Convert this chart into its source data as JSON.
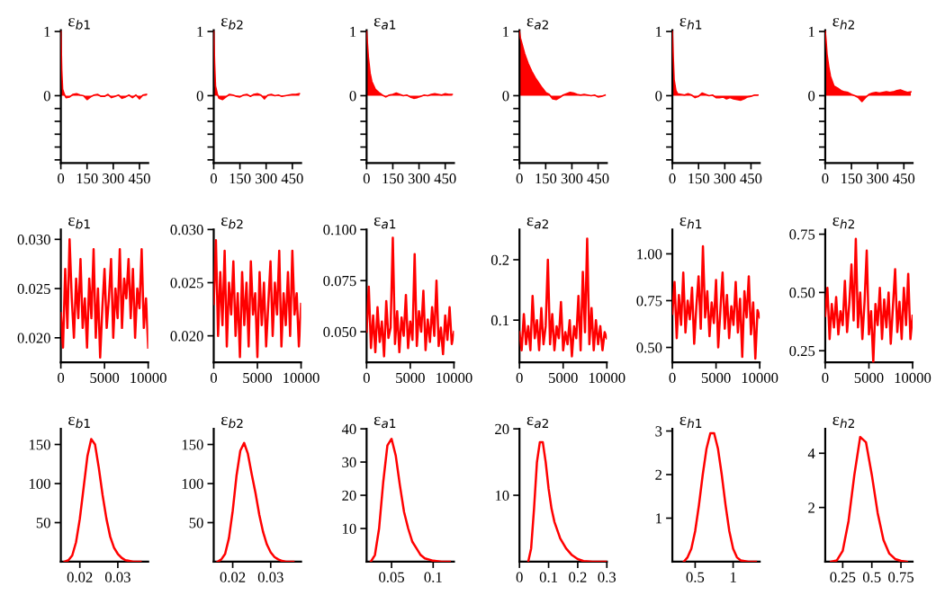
{
  "chart_data": [
    {
      "type": "area",
      "title": "ε$_{b1}$",
      "x": [
        0,
        5,
        10,
        20,
        30,
        50,
        70,
        90,
        110,
        130,
        150,
        170,
        190,
        210,
        230,
        250,
        270,
        290,
        310,
        330,
        350,
        370,
        390,
        410,
        430,
        450,
        470,
        490
      ],
      "series": [
        {
          "color": "#ff0000",
          "values": [
            1,
            0.4,
            0.1,
            0.02,
            -0.03,
            -0.02,
            0.02,
            0.03,
            0.01,
            0,
            -0.06,
            -0.02,
            0.01,
            0.02,
            -0.01,
            -0.01,
            0.02,
            -0.03,
            -0.01,
            0.01,
            -0.04,
            -0.02,
            0.01,
            -0.03,
            0.01,
            -0.05,
            0.01,
            0.02
          ]
        }
      ],
      "xlim": [
        0,
        500
      ],
      "xticks": [
        0,
        150,
        300,
        450
      ],
      "ylim": [
        -1.05,
        1.02
      ],
      "yticks": [
        {
          "value": -1,
          "label": null
        },
        {
          "value": -0.8,
          "label": null
        },
        {
          "value": -0.6,
          "label": null
        },
        {
          "value": -0.4,
          "label": null
        },
        {
          "value": -0.2,
          "label": null
        },
        0,
        1
      ],
      "grid": false,
      "legend": false
    },
    {
      "type": "area",
      "title": "ε$_{b2}$",
      "x": [
        0,
        5,
        10,
        20,
        30,
        50,
        70,
        90,
        110,
        130,
        150,
        170,
        190,
        210,
        230,
        250,
        270,
        290,
        310,
        330,
        350,
        370,
        390,
        410,
        430,
        450,
        470,
        490
      ],
      "series": [
        {
          "color": "#ff0000",
          "values": [
            1,
            0.5,
            0.15,
            0.03,
            -0.04,
            -0.06,
            -0.02,
            0.02,
            0.01,
            -0.01,
            -0.02,
            0.01,
            0.02,
            -0.01,
            0.02,
            0.03,
            0.01,
            -0.05,
            0.01,
            0.02,
            0,
            0.01,
            -0.01,
            0,
            0.01,
            0.02,
            0.02,
            0.03
          ]
        }
      ],
      "xlim": [
        0,
        500
      ],
      "xticks": [
        0,
        150,
        300,
        450
      ],
      "ylim": [
        -1.05,
        1.02
      ],
      "yticks": [
        {
          "value": -1,
          "label": null
        },
        {
          "value": -0.8,
          "label": null
        },
        {
          "value": -0.6,
          "label": null
        },
        {
          "value": -0.4,
          "label": null
        },
        {
          "value": -0.2,
          "label": null
        },
        0,
        1
      ],
      "grid": false,
      "legend": false
    },
    {
      "type": "area",
      "title": "ε$_{a1}$",
      "x": [
        0,
        5,
        10,
        20,
        30,
        50,
        70,
        90,
        110,
        130,
        150,
        170,
        190,
        210,
        230,
        250,
        270,
        290,
        310,
        330,
        350,
        370,
        390,
        410,
        430,
        450,
        470,
        490
      ],
      "series": [
        {
          "color": "#ff0000",
          "values": [
            1,
            0.8,
            0.6,
            0.35,
            0.22,
            0.1,
            0.05,
            0.01,
            -0.02,
            0.01,
            0.02,
            0.04,
            0.02,
            0,
            0.01,
            -0.02,
            -0.04,
            -0.03,
            -0.01,
            0.01,
            0,
            0.02,
            0.03,
            0.02,
            0.01,
            0.03,
            0.02,
            0.02
          ]
        }
      ],
      "xlim": [
        0,
        500
      ],
      "xticks": [
        0,
        150,
        300,
        450
      ],
      "ylim": [
        -1.05,
        1.02
      ],
      "yticks": [
        {
          "value": -1,
          "label": null
        },
        {
          "value": -0.8,
          "label": null
        },
        {
          "value": -0.6,
          "label": null
        },
        {
          "value": -0.4,
          "label": null
        },
        {
          "value": -0.2,
          "label": null
        },
        0,
        1
      ],
      "grid": false,
      "legend": false
    },
    {
      "type": "area",
      "title": "ε$_{a2}$",
      "x": [
        0,
        5,
        10,
        20,
        30,
        50,
        70,
        90,
        110,
        130,
        150,
        170,
        190,
        210,
        230,
        250,
        270,
        290,
        310,
        330,
        350,
        370,
        390,
        410,
        430,
        450,
        470,
        490
      ],
      "series": [
        {
          "color": "#ff0000",
          "values": [
            1,
            0.9,
            0.85,
            0.75,
            0.65,
            0.5,
            0.38,
            0.28,
            0.2,
            0.12,
            0.05,
            0.02,
            -0.05,
            -0.06,
            -0.03,
            0.01,
            0.03,
            0.05,
            0.04,
            0.02,
            0.01,
            0.02,
            0.01,
            0,
            0.01,
            -0.02,
            -0.01,
            0.01
          ]
        }
      ],
      "xlim": [
        0,
        500
      ],
      "xticks": [
        0,
        150,
        300,
        450
      ],
      "ylim": [
        -1.05,
        1.02
      ],
      "yticks": [
        {
          "value": -1,
          "label": null
        },
        {
          "value": -0.8,
          "label": null
        },
        {
          "value": -0.6,
          "label": null
        },
        {
          "value": -0.4,
          "label": null
        },
        {
          "value": -0.2,
          "label": null
        },
        0,
        1
      ],
      "grid": false,
      "legend": false
    },
    {
      "type": "area",
      "title": "ε$_{h1}$",
      "x": [
        0,
        5,
        10,
        20,
        30,
        50,
        70,
        90,
        110,
        130,
        150,
        170,
        190,
        210,
        230,
        250,
        270,
        290,
        310,
        330,
        350,
        370,
        390,
        410,
        430,
        450,
        470,
        490
      ],
      "series": [
        {
          "color": "#ff0000",
          "values": [
            1,
            0.6,
            0.25,
            0.08,
            0.03,
            0.02,
            0.01,
            0.03,
            0.01,
            -0.03,
            -0.01,
            0.04,
            0.02,
            0,
            0.01,
            -0.03,
            -0.03,
            -0.02,
            -0.05,
            -0.03,
            -0.05,
            -0.06,
            -0.07,
            -0.05,
            -0.02,
            -0.01,
            0.01,
            0.01
          ]
        }
      ],
      "xlim": [
        0,
        500
      ],
      "xticks": [
        0,
        150,
        300,
        450
      ],
      "ylim": [
        -1.05,
        1.02
      ],
      "yticks": [
        {
          "value": -1,
          "label": null
        },
        {
          "value": -0.8,
          "label": null
        },
        {
          "value": -0.6,
          "label": null
        },
        {
          "value": -0.4,
          "label": null
        },
        {
          "value": -0.2,
          "label": null
        },
        0,
        1
      ],
      "grid": false,
      "legend": false
    },
    {
      "type": "area",
      "title": "ε$_{h2}$",
      "x": [
        0,
        5,
        10,
        20,
        30,
        50,
        70,
        90,
        110,
        130,
        150,
        170,
        190,
        210,
        230,
        250,
        270,
        290,
        310,
        330,
        350,
        370,
        390,
        410,
        430,
        450,
        470,
        490
      ],
      "series": [
        {
          "color": "#ff0000",
          "values": [
            1,
            0.85,
            0.65,
            0.45,
            0.3,
            0.15,
            0.12,
            0.08,
            0.06,
            0.05,
            0.02,
            0,
            -0.03,
            -0.09,
            -0.03,
            0.02,
            0.04,
            0.05,
            0.04,
            0.05,
            0.06,
            0.05,
            0.06,
            0.08,
            0.09,
            0.07,
            0.05,
            0.06
          ]
        }
      ],
      "xlim": [
        0,
        500
      ],
      "xticks": [
        0,
        150,
        300,
        450
      ],
      "ylim": [
        -1.05,
        1.02
      ],
      "yticks": [
        {
          "value": -1,
          "label": null
        },
        {
          "value": -0.8,
          "label": null
        },
        {
          "value": -0.6,
          "label": null
        },
        {
          "value": -0.4,
          "label": null
        },
        {
          "value": -0.2,
          "label": null
        },
        0,
        1
      ],
      "grid": false,
      "legend": false
    },
    {
      "type": "line",
      "title": "ε$_{b1}$",
      "x": [
        0,
        250,
        500,
        750,
        1000,
        1250,
        1500,
        1750,
        2000,
        2250,
        2500,
        2750,
        3000,
        3250,
        3500,
        3750,
        4000,
        4250,
        4500,
        4750,
        5000,
        5250,
        5500,
        5750,
        6000,
        6250,
        6500,
        6750,
        7000,
        7250,
        7500,
        7750,
        8000,
        8250,
        8500,
        8750,
        9000,
        9250,
        9500,
        9750,
        10000
      ],
      "series": [
        {
          "color": "#ff0000",
          "values": [
            0.0225,
            0.019,
            0.027,
            0.021,
            0.03,
            0.024,
            0.02,
            0.026,
            0.022,
            0.028,
            0.021,
            0.024,
            0.019,
            0.026,
            0.022,
            0.029,
            0.02,
            0.025,
            0.018,
            0.023,
            0.027,
            0.021,
            0.024,
            0.028,
            0.02,
            0.025,
            0.022,
            0.029,
            0.021,
            0.026,
            0.024,
            0.028,
            0.022,
            0.027,
            0.02,
            0.025,
            0.023,
            0.029,
            0.021,
            0.024,
            0.019
          ]
        }
      ],
      "xlim": [
        0,
        10000
      ],
      "xticks": [
        0,
        5000,
        10000
      ],
      "ylim": [
        0.0175,
        0.031
      ],
      "yticks": [
        {
          "value": 0.02,
          "label": "0.020"
        },
        {
          "value": 0.025,
          "label": "0.025"
        },
        {
          "value": 0.03,
          "label": "0.030"
        }
      ],
      "grid": false,
      "legend": false
    },
    {
      "type": "line",
      "title": "ε$_{b2}$",
      "x": [
        0,
        250,
        500,
        750,
        1000,
        1250,
        1500,
        1750,
        2000,
        2250,
        2500,
        2750,
        3000,
        3250,
        3500,
        3750,
        4000,
        4250,
        4500,
        4750,
        5000,
        5250,
        5500,
        5750,
        6000,
        6250,
        6500,
        6750,
        7000,
        7250,
        7500,
        7750,
        8000,
        8250,
        8500,
        8750,
        9000,
        9250,
        9500,
        9750,
        10000
      ],
      "series": [
        {
          "color": "#ff0000",
          "values": [
            0.023,
            0.029,
            0.02,
            0.026,
            0.021,
            0.028,
            0.019,
            0.025,
            0.022,
            0.027,
            0.02,
            0.024,
            0.018,
            0.026,
            0.021,
            0.025,
            0.019,
            0.027,
            0.022,
            0.024,
            0.018,
            0.026,
            0.021,
            0.025,
            0.019,
            0.023,
            0.027,
            0.02,
            0.025,
            0.022,
            0.028,
            0.019,
            0.024,
            0.021,
            0.026,
            0.02,
            0.028,
            0.022,
            0.024,
            0.019,
            0.023
          ]
        }
      ],
      "xlim": [
        0,
        10000
      ],
      "xticks": [
        0,
        5000,
        10000
      ],
      "ylim": [
        0.0175,
        0.03
      ],
      "yticks": [
        {
          "value": 0.02,
          "label": "0.020"
        },
        {
          "value": 0.025,
          "label": "0.025"
        },
        {
          "value": 0.03,
          "label": "0.030"
        }
      ],
      "grid": false,
      "legend": false
    },
    {
      "type": "line",
      "title": "ε$_{a1}$",
      "x": [
        0,
        250,
        500,
        750,
        1000,
        1250,
        1500,
        1750,
        2000,
        2250,
        2500,
        2750,
        3000,
        3250,
        3500,
        3750,
        4000,
        4250,
        4500,
        4750,
        5000,
        5250,
        5500,
        5750,
        6000,
        6250,
        6500,
        6750,
        7000,
        7250,
        7500,
        7750,
        8000,
        8250,
        8500,
        8750,
        9000,
        9250,
        9500,
        9750,
        10000
      ],
      "series": [
        {
          "color": "#ff0000",
          "values": [
            0.05,
            0.072,
            0.042,
            0.058,
            0.04,
            0.062,
            0.045,
            0.055,
            0.038,
            0.065,
            0.047,
            0.052,
            0.096,
            0.044,
            0.06,
            0.04,
            0.057,
            0.048,
            0.068,
            0.042,
            0.055,
            0.046,
            0.088,
            0.043,
            0.06,
            0.05,
            0.07,
            0.041,
            0.056,
            0.045,
            0.062,
            0.048,
            0.075,
            0.043,
            0.052,
            0.039,
            0.058,
            0.046,
            0.062,
            0.044,
            0.05
          ]
        }
      ],
      "xlim": [
        0,
        10000
      ],
      "xticks": [
        0,
        5000,
        10000
      ],
      "ylim": [
        0.035,
        0.1
      ],
      "yticks": [
        {
          "value": 0.05,
          "label": "0.050"
        },
        {
          "value": 0.075,
          "label": "0.075"
        },
        {
          "value": 0.1,
          "label": "0.100"
        }
      ],
      "grid": false,
      "legend": false
    },
    {
      "type": "line",
      "title": "ε$_{a2}$",
      "x": [
        0,
        250,
        500,
        750,
        1000,
        1250,
        1500,
        1750,
        2000,
        2250,
        2500,
        2750,
        3000,
        3250,
        3500,
        3750,
        4000,
        4250,
        4500,
        4750,
        5000,
        5250,
        5500,
        5750,
        6000,
        6250,
        6500,
        6750,
        7000,
        7250,
        7500,
        7750,
        8000,
        8250,
        8500,
        8750,
        9000,
        9250,
        9500,
        9750,
        10000
      ],
      "series": [
        {
          "color": "#ff0000",
          "values": [
            0.08,
            0.05,
            0.11,
            0.06,
            0.09,
            0.05,
            0.14,
            0.07,
            0.1,
            0.05,
            0.12,
            0.06,
            0.09,
            0.2,
            0.06,
            0.11,
            0.05,
            0.09,
            0.07,
            0.13,
            0.05,
            0.08,
            0.06,
            0.1,
            0.04,
            0.09,
            0.07,
            0.14,
            0.05,
            0.18,
            0.08,
            0.235,
            0.06,
            0.12,
            0.05,
            0.1,
            0.06,
            0.09,
            0.05,
            0.08,
            0.07
          ]
        }
      ],
      "xlim": [
        0,
        10000
      ],
      "xticks": [
        0,
        5000,
        10000
      ],
      "ylim": [
        0.03,
        0.25
      ],
      "yticks": [
        0.1,
        0.2
      ],
      "grid": false,
      "legend": false
    },
    {
      "type": "line",
      "title": "ε$_{h1}$",
      "x": [
        0,
        250,
        500,
        750,
        1000,
        1250,
        1500,
        1750,
        2000,
        2250,
        2500,
        2750,
        3000,
        3250,
        3500,
        3750,
        4000,
        4250,
        4500,
        4750,
        5000,
        5250,
        5500,
        5750,
        6000,
        6250,
        6500,
        6750,
        7000,
        7250,
        7500,
        7750,
        8000,
        8250,
        8500,
        8750,
        9000,
        9250,
        9500,
        9750,
        10000
      ],
      "series": [
        {
          "color": "#ff0000",
          "values": [
            0.68,
            0.85,
            0.55,
            0.78,
            0.62,
            0.9,
            0.58,
            0.75,
            0.65,
            0.82,
            0.52,
            0.72,
            0.88,
            0.6,
            1.04,
            0.66,
            0.8,
            0.56,
            0.74,
            0.63,
            0.86,
            0.5,
            0.7,
            0.9,
            0.6,
            0.78,
            0.55,
            0.72,
            0.62,
            0.85,
            0.58,
            0.76,
            0.45,
            0.8,
            0.66,
            0.88,
            0.57,
            0.74,
            0.44,
            0.7,
            0.66
          ]
        }
      ],
      "xlim": [
        0,
        10000
      ],
      "xticks": [
        0,
        5000,
        10000
      ],
      "ylim": [
        0.42,
        1.13
      ],
      "yticks": [
        {
          "value": 0.5,
          "label": "0.50"
        },
        {
          "value": 0.75,
          "label": "0.75"
        },
        {
          "value": 1,
          "label": "1.00"
        }
      ],
      "grid": false,
      "legend": false
    },
    {
      "type": "line",
      "title": "ε$_{h2}$",
      "x": [
        0,
        250,
        500,
        750,
        1000,
        1250,
        1500,
        1750,
        2000,
        2250,
        2500,
        2750,
        3000,
        3250,
        3500,
        3750,
        4000,
        4250,
        4500,
        4750,
        5000,
        5250,
        5500,
        5750,
        6000,
        6250,
        6500,
        6750,
        7000,
        7250,
        7500,
        7750,
        8000,
        8250,
        8500,
        8750,
        9000,
        9250,
        9500,
        9750,
        10000
      ],
      "series": [
        {
          "color": "#ff0000",
          "values": [
            0.4,
            0.52,
            0.3,
            0.45,
            0.35,
            0.48,
            0.32,
            0.42,
            0.36,
            0.55,
            0.33,
            0.45,
            0.62,
            0.38,
            0.73,
            0.35,
            0.5,
            0.3,
            0.46,
            0.68,
            0.32,
            0.42,
            0.2,
            0.45,
            0.36,
            0.52,
            0.3,
            0.47,
            0.35,
            0.5,
            0.28,
            0.44,
            0.6,
            0.33,
            0.46,
            0.3,
            0.52,
            0.36,
            0.58,
            0.3,
            0.4
          ]
        }
      ],
      "xlim": [
        0,
        10000
      ],
      "xticks": [
        0,
        5000,
        10000
      ],
      "ylim": [
        0.2,
        0.77
      ],
      "yticks": [
        {
          "value": 0.25,
          "label": "0.25"
        },
        {
          "value": 0.5,
          "label": "0.50"
        },
        {
          "value": 0.75,
          "label": "0.75"
        }
      ],
      "grid": false,
      "legend": false
    },
    {
      "type": "line",
      "title": "ε$_{b1}$",
      "x": [
        0.016,
        0.017,
        0.018,
        0.019,
        0.02,
        0.021,
        0.022,
        0.023,
        0.024,
        0.025,
        0.026,
        0.027,
        0.028,
        0.029,
        0.03,
        0.031,
        0.032,
        0.033,
        0.034,
        0.036
      ],
      "series": [
        {
          "color": "#ff0000",
          "values": [
            0,
            2,
            8,
            25,
            55,
            95,
            135,
            157,
            150,
            120,
            85,
            55,
            32,
            18,
            10,
            5,
            2,
            1,
            0,
            0
          ]
        }
      ],
      "xlim": [
        0.015,
        0.038
      ],
      "xticks": [
        0.02,
        0.03
      ],
      "ylim": [
        0,
        170
      ],
      "yticks": [
        50,
        100,
        150
      ],
      "grid": false,
      "legend": false
    },
    {
      "type": "line",
      "title": "ε$_{b2}$",
      "x": [
        0.016,
        0.017,
        0.018,
        0.019,
        0.02,
        0.021,
        0.022,
        0.023,
        0.024,
        0.025,
        0.026,
        0.027,
        0.028,
        0.029,
        0.03,
        0.031,
        0.032,
        0.033,
        0.034,
        0.036
      ],
      "series": [
        {
          "color": "#ff0000",
          "values": [
            0,
            3,
            10,
            30,
            65,
            110,
            142,
            152,
            138,
            112,
            88,
            60,
            38,
            22,
            12,
            6,
            3,
            1,
            0,
            0
          ]
        }
      ],
      "xlim": [
        0.015,
        0.038
      ],
      "xticks": [
        0.02,
        0.03
      ],
      "ylim": [
        0,
        170
      ],
      "yticks": [
        50,
        100,
        150
      ],
      "grid": false,
      "legend": false
    },
    {
      "type": "line",
      "title": "ε$_{a1}$",
      "x": [
        0.025,
        0.03,
        0.035,
        0.04,
        0.045,
        0.05,
        0.055,
        0.06,
        0.065,
        0.07,
        0.075,
        0.08,
        0.085,
        0.09,
        0.1,
        0.11,
        0.12
      ],
      "series": [
        {
          "color": "#ff0000",
          "values": [
            0,
            2,
            10,
            24,
            35,
            37,
            32,
            23,
            15,
            10,
            6,
            4,
            2,
            1,
            0.3,
            0,
            0
          ]
        }
      ],
      "xlim": [
        0.02,
        0.125
      ],
      "xticks": [
        0.05,
        0.1
      ],
      "ylim": [
        0,
        40
      ],
      "yticks": [
        10,
        20,
        30,
        40
      ],
      "grid": false,
      "legend": false
    },
    {
      "type": "line",
      "title": "ε$_{a2}$",
      "x": [
        0.03,
        0.04,
        0.05,
        0.06,
        0.07,
        0.08,
        0.09,
        0.1,
        0.11,
        0.12,
        0.14,
        0.16,
        0.18,
        0.2,
        0.22,
        0.25,
        0.3
      ],
      "series": [
        {
          "color": "#ff0000",
          "values": [
            0,
            2,
            8,
            15,
            18,
            18,
            15,
            11,
            8,
            6,
            3.5,
            2,
            1,
            0.4,
            0.1,
            0,
            0
          ]
        }
      ],
      "xlim": [
        0,
        0.3
      ],
      "xticks": [
        0,
        0.1,
        0.2,
        0.3
      ],
      "ylim": [
        0,
        20
      ],
      "yticks": [
        10,
        20
      ],
      "grid": false,
      "legend": false
    },
    {
      "type": "line",
      "title": "ε$_{h1}$",
      "x": [
        0.35,
        0.4,
        0.45,
        0.5,
        0.55,
        0.6,
        0.65,
        0.7,
        0.75,
        0.8,
        0.85,
        0.9,
        0.95,
        1.0,
        1.05,
        1.1,
        1.2,
        1.3
      ],
      "series": [
        {
          "color": "#ff0000",
          "values": [
            0,
            0.1,
            0.3,
            0.7,
            1.3,
            2.0,
            2.6,
            2.95,
            2.95,
            2.6,
            2.0,
            1.3,
            0.7,
            0.3,
            0.1,
            0.03,
            0,
            0
          ]
        }
      ],
      "xlim": [
        0.2,
        1.35
      ],
      "xticks": [
        0.5,
        1
      ],
      "ylim": [
        0,
        3.05
      ],
      "yticks": [
        1,
        2,
        3
      ],
      "grid": false,
      "legend": false
    },
    {
      "type": "line",
      "title": "ε$_{h2}$",
      "x": [
        0.15,
        0.2,
        0.25,
        0.3,
        0.35,
        0.4,
        0.45,
        0.5,
        0.55,
        0.6,
        0.65,
        0.7,
        0.75,
        0.8
      ],
      "series": [
        {
          "color": "#ff0000",
          "values": [
            0,
            0.05,
            0.4,
            1.5,
            3.2,
            4.6,
            4.4,
            3.2,
            1.8,
            0.8,
            0.3,
            0.1,
            0.03,
            0
          ]
        }
      ],
      "xlim": [
        0.1,
        0.85
      ],
      "xticks": [
        0.25,
        0.5,
        0.75
      ],
      "ylim": [
        0,
        4.9
      ],
      "yticks": [
        2,
        4
      ],
      "grid": false,
      "legend": false
    }
  ]
}
